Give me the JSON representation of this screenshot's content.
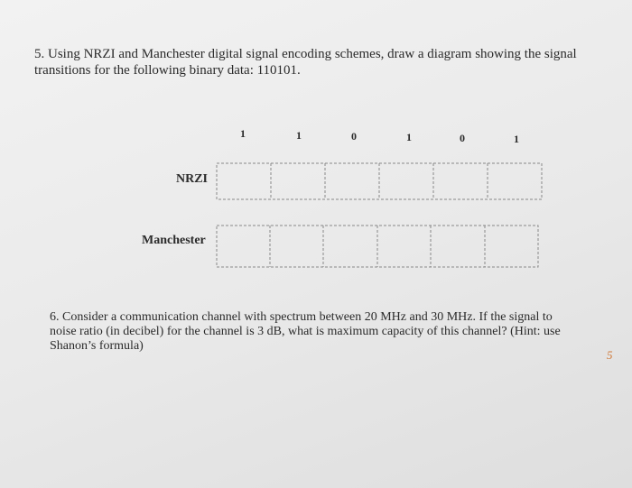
{
  "question5": {
    "lines": [
      "5. Using NRZI and Manchester digital signal encoding schemes, draw a diagram showing the signal",
      "transitions for the following binary data: 110101."
    ],
    "bits": [
      "1",
      "1",
      "0",
      "1",
      "0",
      "1"
    ],
    "row_labels": [
      "NRZI",
      "Manchester"
    ]
  },
  "question6": {
    "lines": [
      "6. Consider a communication channel with spectrum between 20 MHz and 30 MHz. If the signal to",
      "noise ratio (in decibel) for the channel is 3 dB, what is maximum capacity of this channel? (Hint: use",
      "Shanon’s formula)"
    ]
  },
  "page_number": "5"
}
